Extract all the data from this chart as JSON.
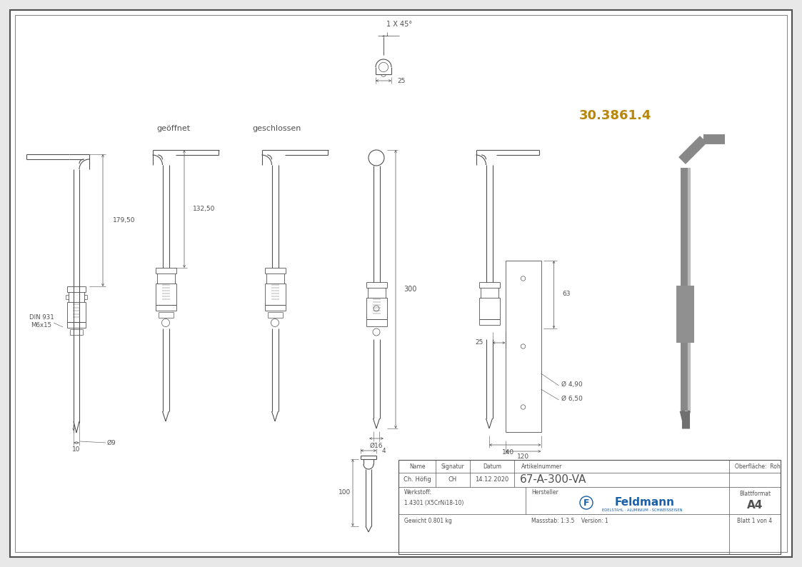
{
  "bg_color": "#e8e8e8",
  "drawing_bg": "#ffffff",
  "line_color": "#505050",
  "dim_color": "#505050",
  "title_color": "#b8860b",
  "part_number": "30.3861.4",
  "article_number": "67-A-300-VA",
  "name_label": "Name",
  "sig_label": "Signatur",
  "date_label": "Datum",
  "art_label": "Artikelnummer",
  "oberflaeche_label": "Oberfläche:  Roh",
  "person": "Ch. Höfig",
  "sig": "CH",
  "date": "14.12.2020",
  "werkstoff_label": "Werkstoff:",
  "werkstoff_val": "1.4301 (X5CrNi18-10)",
  "hersteller_label": "Hersteller",
  "blattformat_label": "Blattformat",
  "blattformat_val": "A4",
  "gewicht_label": "Gewicht 0.801 kg",
  "massstab_label": "Massstab: 1:3.5    Version: 1",
  "blatt_label": "Blatt 1 von 4",
  "label_geoeffnet": "geöffnet",
  "label_geschlossen": "geschlossen",
  "dim_179_50": "179,50",
  "dim_132_50": "132,50",
  "dim_300": "300",
  "dim_25_top": "25",
  "dim_10": "10",
  "dim_d9": "Ø9",
  "dim_d16": "Ø16",
  "dim_25_right": "25",
  "dim_140": "140",
  "dim_120": "120",
  "dim_63": "63",
  "dim_d490": "Ø 4,90",
  "dim_d650": "Ø 6,50",
  "dim_4": "4",
  "dim_100": "100",
  "dim_1x45": "1 X 45°",
  "din_label": "DIN 931\nM6x15",
  "feldmann_text": "Feldmann",
  "feldmann_sub": "EDELSTAHL · ALUMINIUM · SCHWEISSEISEN",
  "feldmann_color": "#1a5fa8"
}
